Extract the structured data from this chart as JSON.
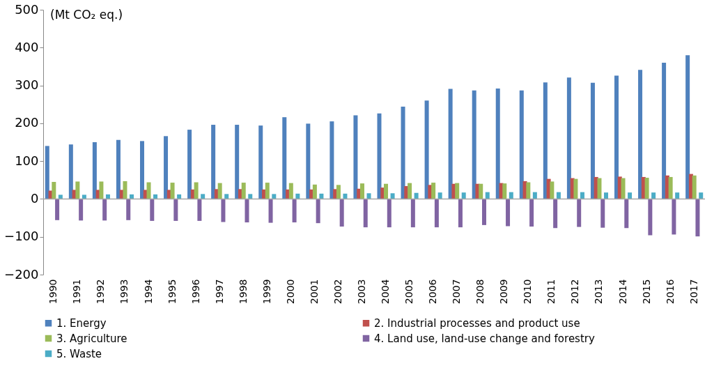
{
  "chart_data": {
    "type": "bar",
    "ylabel": "(Mt CO₂ eq.)",
    "categories": [
      "1990",
      "1991",
      "1992",
      "1993",
      "1994",
      "1995",
      "1996",
      "1997",
      "1998",
      "1999",
      "2000",
      "2001",
      "2002",
      "2003",
      "2004",
      "2005",
      "2006",
      "2007",
      "2008",
      "2009",
      "2010",
      "2011",
      "2012",
      "2013",
      "2014",
      "2015",
      "2016",
      "2017"
    ],
    "series": [
      {
        "name": "1.  Energy",
        "color": "#4f81bd",
        "values": [
          140,
          144,
          150,
          156,
          153,
          166,
          183,
          196,
          196,
          194,
          216,
          199,
          205,
          221,
          226,
          244,
          260,
          291,
          287,
          292,
          287,
          308,
          321,
          307,
          326,
          341,
          360,
          380
        ]
      },
      {
        "name": "2.  Industrial processes and product use",
        "color": "#c0504d",
        "values": [
          22,
          24,
          24,
          24,
          24,
          24,
          25,
          26,
          26,
          25,
          25,
          25,
          26,
          27,
          30,
          34,
          37,
          40,
          40,
          42,
          47,
          53,
          55,
          58,
          59,
          58,
          62,
          66
        ]
      },
      {
        "name": "3.  Agriculture",
        "color": "#9bbb59",
        "values": [
          45,
          46,
          46,
          47,
          44,
          43,
          44,
          42,
          43,
          43,
          42,
          38,
          37,
          41,
          40,
          42,
          43,
          42,
          40,
          41,
          44,
          46,
          53,
          55,
          55,
          56,
          58,
          62
        ]
      },
      {
        "name": "4.  Land use, land-use change and forestry",
        "color": "#8064a2",
        "values": [
          -56,
          -57,
          -57,
          -56,
          -58,
          -58,
          -58,
          -61,
          -62,
          -63,
          -62,
          -64,
          -73,
          -75,
          -75,
          -75,
          -75,
          -75,
          -69,
          -72,
          -73,
          -77,
          -74,
          -76,
          -77,
          -96,
          -94,
          -99
        ]
      },
      {
        "name": "5.  Waste",
        "color": "#4bacc6",
        "values": [
          11,
          11,
          12,
          12,
          12,
          12,
          13,
          13,
          13,
          13,
          14,
          14,
          14,
          15,
          15,
          16,
          17,
          17,
          18,
          18,
          18,
          18,
          18,
          17,
          17,
          17,
          17,
          17
        ]
      }
    ],
    "ylim": [
      -200,
      500
    ],
    "yticks": [
      -200,
      -100,
      0,
      100,
      200,
      300,
      400,
      500
    ],
    "ref_lines": [
      {
        "axis": "y",
        "value": 0,
        "color": "#a6a6a6"
      }
    ],
    "grid": false,
    "legend": "bottom"
  }
}
